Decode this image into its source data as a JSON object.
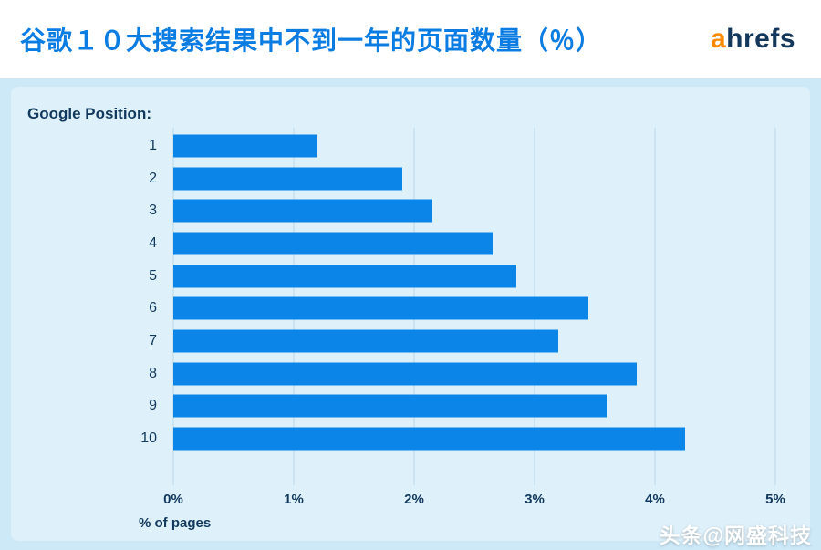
{
  "header": {
    "title": "谷歌１０大搜索结果中不到一年的页面数量（％）",
    "logo_prefix": "a",
    "logo_rest": "hrefs"
  },
  "chart_data": {
    "type": "bar",
    "orientation": "horizontal",
    "title": "谷歌１０大搜索结果中不到一年的页面数量（％）",
    "ylabel": "Google Position:",
    "xlabel": "% of pages",
    "categories": [
      "1",
      "2",
      "3",
      "4",
      "5",
      "6",
      "7",
      "8",
      "9",
      "10"
    ],
    "values": [
      1.2,
      1.9,
      2.15,
      2.65,
      2.85,
      3.45,
      3.2,
      3.85,
      3.6,
      4.25
    ],
    "xlim": [
      0,
      5
    ],
    "xticks": [
      "0%",
      "1%",
      "2%",
      "3%",
      "4%",
      "5%"
    ],
    "grid": true,
    "legend": false
  },
  "watermark": "头条@网盛科技",
  "colors": {
    "bar": "#0b86e8",
    "title": "#0b7ce2",
    "axis-text": "#12395e",
    "background": "#cde8f7",
    "panel": "#def0fa",
    "grid": "#b9d8ea",
    "logo-orange": "#ff8a00",
    "logo-dark": "#14375c",
    "header-bg": "#ffffff",
    "watermark": "#ffffff"
  }
}
